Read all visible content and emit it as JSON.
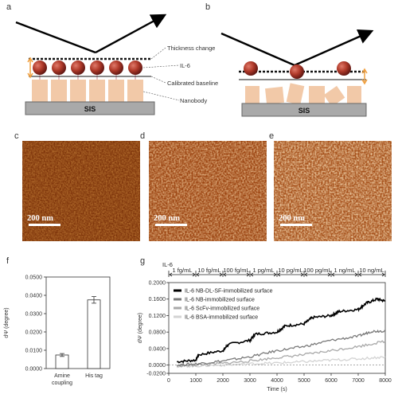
{
  "panel_labels": {
    "a": "a",
    "b": "b",
    "c": "c",
    "d": "d",
    "e": "e",
    "f": "f",
    "g": "g"
  },
  "schematic": {
    "thickness_change": "Thickness change",
    "il6": "IL-6",
    "calibrated_baseline": "Calibrated baseline",
    "nanobody": "Nanobody",
    "substrate": "SIS"
  },
  "afm": {
    "scale_bar_label": "200 nm",
    "colors": {
      "dark": "#6b2a08",
      "mid": "#b3541a",
      "light": "#e89a52",
      "bright": "#ffd59a"
    }
  },
  "chart_data": [
    {
      "type": "bar",
      "categories": [
        "Amine\ncoupling",
        "His tag"
      ],
      "values": [
        0.0074,
        0.0375
      ],
      "errors": [
        0.0008,
        0.0018
      ],
      "xlabel": "",
      "ylabel": "dΨ (degree)",
      "ylim": [
        0,
        0.05
      ],
      "yticks": [
        "0.0000",
        "0.0100",
        "0.0200",
        "0.0300",
        "0.0400",
        "0.0500"
      ],
      "category_labels": [
        [
          "Amine",
          "coupling"
        ],
        [
          "His tag"
        ]
      ]
    },
    {
      "type": "line",
      "title": "IL-6",
      "xlabel": "Time (s)",
      "ylabel": "dΨ (degree)",
      "xlim": [
        0,
        8000
      ],
      "ylim": [
        -0.02,
        0.2
      ],
      "xticks": [
        "0",
        "1000",
        "2000",
        "3000",
        "4000",
        "5000",
        "6000",
        "7000",
        "8000"
      ],
      "yticks": [
        "-0.0200",
        "0.0000",
        "0.0400",
        "0.0800",
        "0.1200",
        "0.1600",
        "0.2000"
      ],
      "concentration_labels": [
        "1 fg/mL",
        "10 fg/mL",
        "100 fg/mL",
        "1 pg/mL",
        "10 pg/mL",
        "100 pg/mL",
        "1 ng/mL",
        "10 ng/mL"
      ],
      "concentration_boundaries": [
        0,
        1000,
        2000,
        3000,
        4000,
        5000,
        6000,
        7000,
        8000
      ],
      "series": [
        {
          "name": "IL-6 NB-DL-SF-immobilized surface",
          "color": "#000000",
          "x": [
            300,
            1000,
            1100,
            2000,
            2200,
            3000,
            3200,
            4000,
            4300,
            5000,
            5300,
            6000,
            6300,
            7000,
            7300,
            7700,
            8000
          ],
          "y": [
            0.008,
            0.012,
            0.025,
            0.035,
            0.05,
            0.06,
            0.075,
            0.08,
            0.095,
            0.1,
            0.115,
            0.12,
            0.13,
            0.135,
            0.15,
            0.16,
            0.155
          ]
        },
        {
          "name": "IL-6 NB-immobilized surface",
          "color": "#7a7a7a",
          "x": [
            300,
            1000,
            2000,
            3000,
            4000,
            5000,
            6000,
            7000,
            7500,
            8000
          ],
          "y": [
            0.0,
            0.003,
            0.01,
            0.02,
            0.035,
            0.045,
            0.06,
            0.07,
            0.082,
            0.083
          ]
        },
        {
          "name": "IL-6 ScFv-immobilized surface",
          "color": "#a9a9a9",
          "x": [
            300,
            1000,
            2000,
            3000,
            4000,
            5000,
            6000,
            7000,
            8000
          ],
          "y": [
            -0.002,
            0.0,
            0.004,
            0.01,
            0.018,
            0.025,
            0.035,
            0.045,
            0.058
          ]
        },
        {
          "name": "IL-6 BSA-immobilized surface",
          "color": "#d3d3d3",
          "x": [
            300,
            1000,
            2000,
            3000,
            4000,
            5000,
            6000,
            7000,
            8000
          ],
          "y": [
            -0.003,
            -0.002,
            0.0,
            0.003,
            0.005,
            0.008,
            0.012,
            0.015,
            0.02
          ]
        }
      ]
    }
  ]
}
